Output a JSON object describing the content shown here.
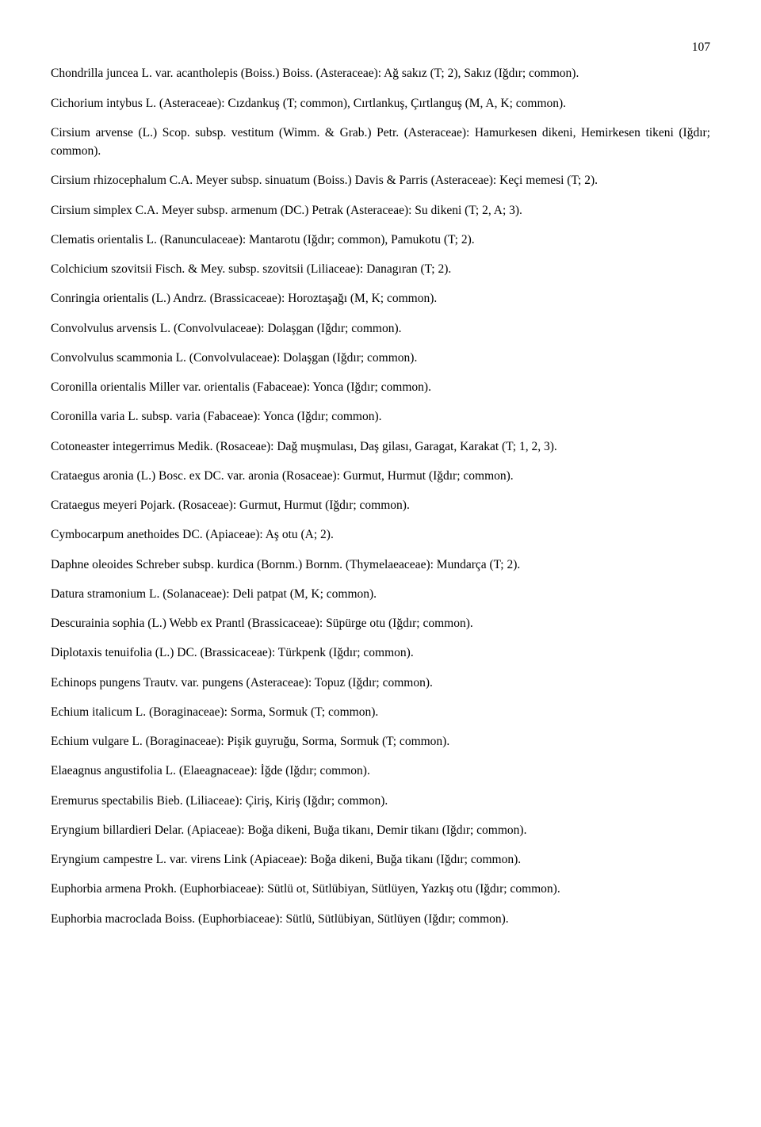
{
  "page_number": "107",
  "entries": [
    "Chondrilla juncea L. var. acantholepis (Boiss.) Boiss. (Asteraceae): Ağ sakız (T; 2), Sakız (Iğdır; common).",
    "Cichorium intybus L. (Asteraceae): Cızdankuş (T; common), Cırtlankuş, Çırtlanguş (M, A, K; common).",
    "Cirsium arvense (L.) Scop. subsp. vestitum (Wimm. & Grab.) Petr. (Asteraceae): Hamurkesen dikeni, Hemirkesen tikeni (Iğdır; common).",
    "Cirsium rhizocephalum C.A. Meyer subsp. sinuatum (Boiss.) Davis & Parris (Asteraceae): Keçi memesi (T; 2).",
    "Cirsium simplex C.A. Meyer subsp. armenum (DC.) Petrak (Asteraceae): Su dikeni (T; 2, A; 3).",
    "Clematis orientalis L. (Ranunculaceae): Mantarotu (Iğdır; common), Pamukotu (T; 2).",
    "Colchicium szovitsii Fisch. & Mey. subsp. szovitsii (Liliaceae): Danagıran (T; 2).",
    "Conringia orientalis (L.) Andrz. (Brassicaceae): Horoztaşağı (M, K; common).",
    "Convolvulus arvensis L. (Convolvulaceae): Dolaşgan (Iğdır; common).",
    "Convolvulus scammonia L. (Convolvulaceae): Dolaşgan (Iğdır; common).",
    "Coronilla orientalis Miller var. orientalis (Fabaceae): Yonca (Iğdır; common).",
    "Coronilla varia L. subsp. varia (Fabaceae): Yonca (Iğdır; common).",
    "Cotoneaster integerrimus Medik. (Rosaceae): Dağ muşmulası, Daş gilası, Garagat, Karakat (T; 1, 2, 3).",
    "Crataegus aronia (L.) Bosc. ex DC. var. aronia (Rosaceae): Gurmut, Hurmut (Iğdır; common).",
    "Crataegus meyeri Pojark. (Rosaceae): Gurmut, Hurmut (Iğdır; common).",
    "Cymbocarpum anethoides DC. (Apiaceae): Aş otu (A; 2).",
    "Daphne oleoides Schreber subsp. kurdica (Bornm.) Bornm. (Thymelaeaceae): Mundarça (T; 2).",
    "Datura stramonium L. (Solanaceae): Deli patpat (M, K; common).",
    "Descurainia sophia (L.) Webb ex Prantl (Brassicaceae): Süpürge otu (Iğdır; common).",
    "Diplotaxis tenuifolia (L.) DC. (Brassicaceae): Türkpenk (Iğdır; common).",
    "Echinops pungens Trautv. var. pungens (Asteraceae): Topuz (Iğdır; common).",
    "Echium italicum L. (Boraginaceae): Sorma, Sormuk (T; common).",
    "Echium vulgare L. (Boraginaceae): Pişik guyruğu, Sorma, Sormuk (T; common).",
    "Elaeagnus angustifolia L. (Elaeagnaceae): İğde (Iğdır; common).",
    "Eremurus spectabilis Bieb. (Liliaceae): Çiriş, Kiriş (Iğdır; common).",
    "Eryngium billardieri Delar. (Apiaceae): Boğa dikeni, Buğa tikanı, Demir tikanı (Iğdır; common).",
    "Eryngium campestre L. var. virens Link (Apiaceae): Boğa dikeni, Buğa tikanı (Iğdır; common).",
    "Euphorbia armena Prokh. (Euphorbiaceae): Sütlü ot, Sütlübiyan, Sütlüyen, Yazkış otu (Iğdır; common).",
    "Euphorbia macroclada Boiss. (Euphorbiaceae): Sütlü, Sütlübiyan, Sütlüyen (Iğdır; common)."
  ]
}
